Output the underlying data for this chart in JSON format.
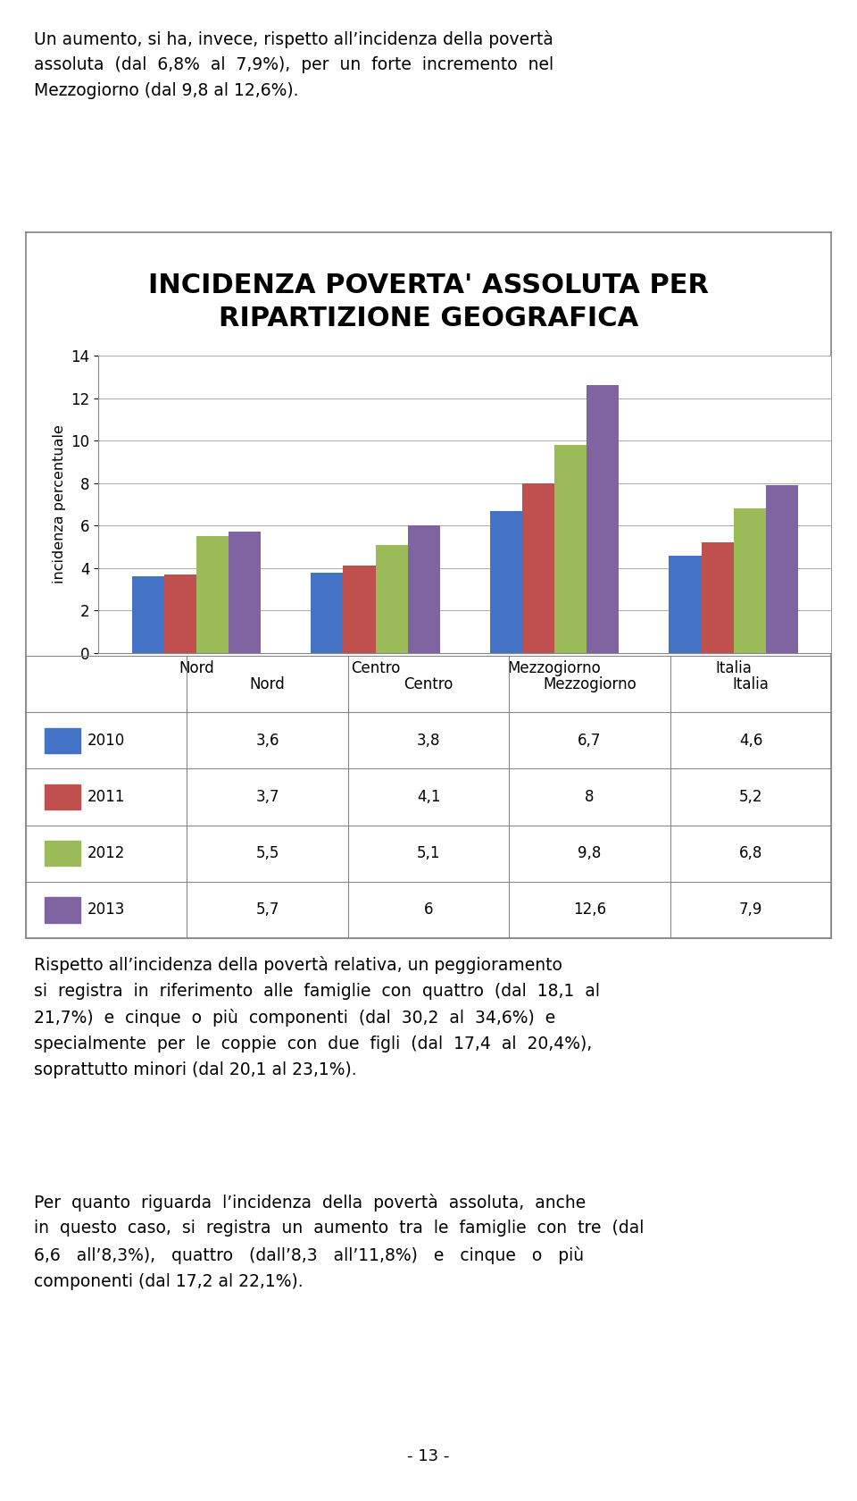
{
  "title_line1": "INCIDENZA POVERTA' ASSOLUTA PER",
  "title_line2": "RIPARTIZIONE GEOGRAFICA",
  "categories": [
    "Nord",
    "Centro",
    "Mezzogiorno",
    "Italia"
  ],
  "years": [
    "2010",
    "2011",
    "2012",
    "2013"
  ],
  "values": {
    "2010": [
      3.6,
      3.8,
      6.7,
      4.6
    ],
    "2011": [
      3.7,
      4.1,
      8.0,
      5.2
    ],
    "2012": [
      5.5,
      5.1,
      9.8,
      6.8
    ],
    "2013": [
      5.7,
      6.0,
      12.6,
      7.9
    ]
  },
  "bar_colors": {
    "2010": "#4472C4",
    "2011": "#C0504D",
    "2012": "#9BBB59",
    "2013": "#8064A2"
  },
  "ylabel": "incidenza percentuale",
  "ylim": [
    0,
    14
  ],
  "yticks": [
    0,
    2,
    4,
    6,
    8,
    10,
    12,
    14
  ],
  "chart_bg": "#FFFFFF",
  "outer_bg": "#FFFFFF",
  "border_color": "#808080",
  "title_fontsize": 22,
  "table_values": {
    "2010": [
      "3,6",
      "3,8",
      "6,7",
      "4,6"
    ],
    "2011": [
      "3,7",
      "4,1",
      "8",
      "5,2"
    ],
    "2012": [
      "5,5",
      "5,1",
      "9,8",
      "6,8"
    ],
    "2013": [
      "5,7",
      "6",
      "12,6",
      "7,9"
    ]
  },
  "top_text": "Un aumento, si ha, invece, rispetto all’incidenza della povertà\nassoluta  (dal  6,8%  al  7,9%),  per  un  forte  incremento  nel\nMezzogiorno (dal 9,8 al 12,6%).",
  "bottom_text1": "Rispetto all’incidenza della povertà relativa, un peggioramento\nsi  registra  in  riferimento  alle  famiglie  con  quattro  (dal  18,1  al\n21,7%)  e  cinque  o  più  componenti  (dal  30,2  al  34,6%)  e\nspecialmente  per  le  coppie  con  due  figli  (dal  17,4  al  20,4%),\nsoprattutto minori (dal 20,1 al 23,1%).",
  "bottom_text2": "Per  quanto  riguarda  l’incidenza  della  povertà  assoluta,  anche\nin  questo  caso,  si  registra  un  aumento  tra  le  famiglie  con  tre  (dal\n6,6   all’8,3%),   quattro   (dall’8,3   all’11,8%)   e   cinque   o   più\ncomponenti (dal 17,2 al 22,1%).",
  "page_number": "- 13 -"
}
